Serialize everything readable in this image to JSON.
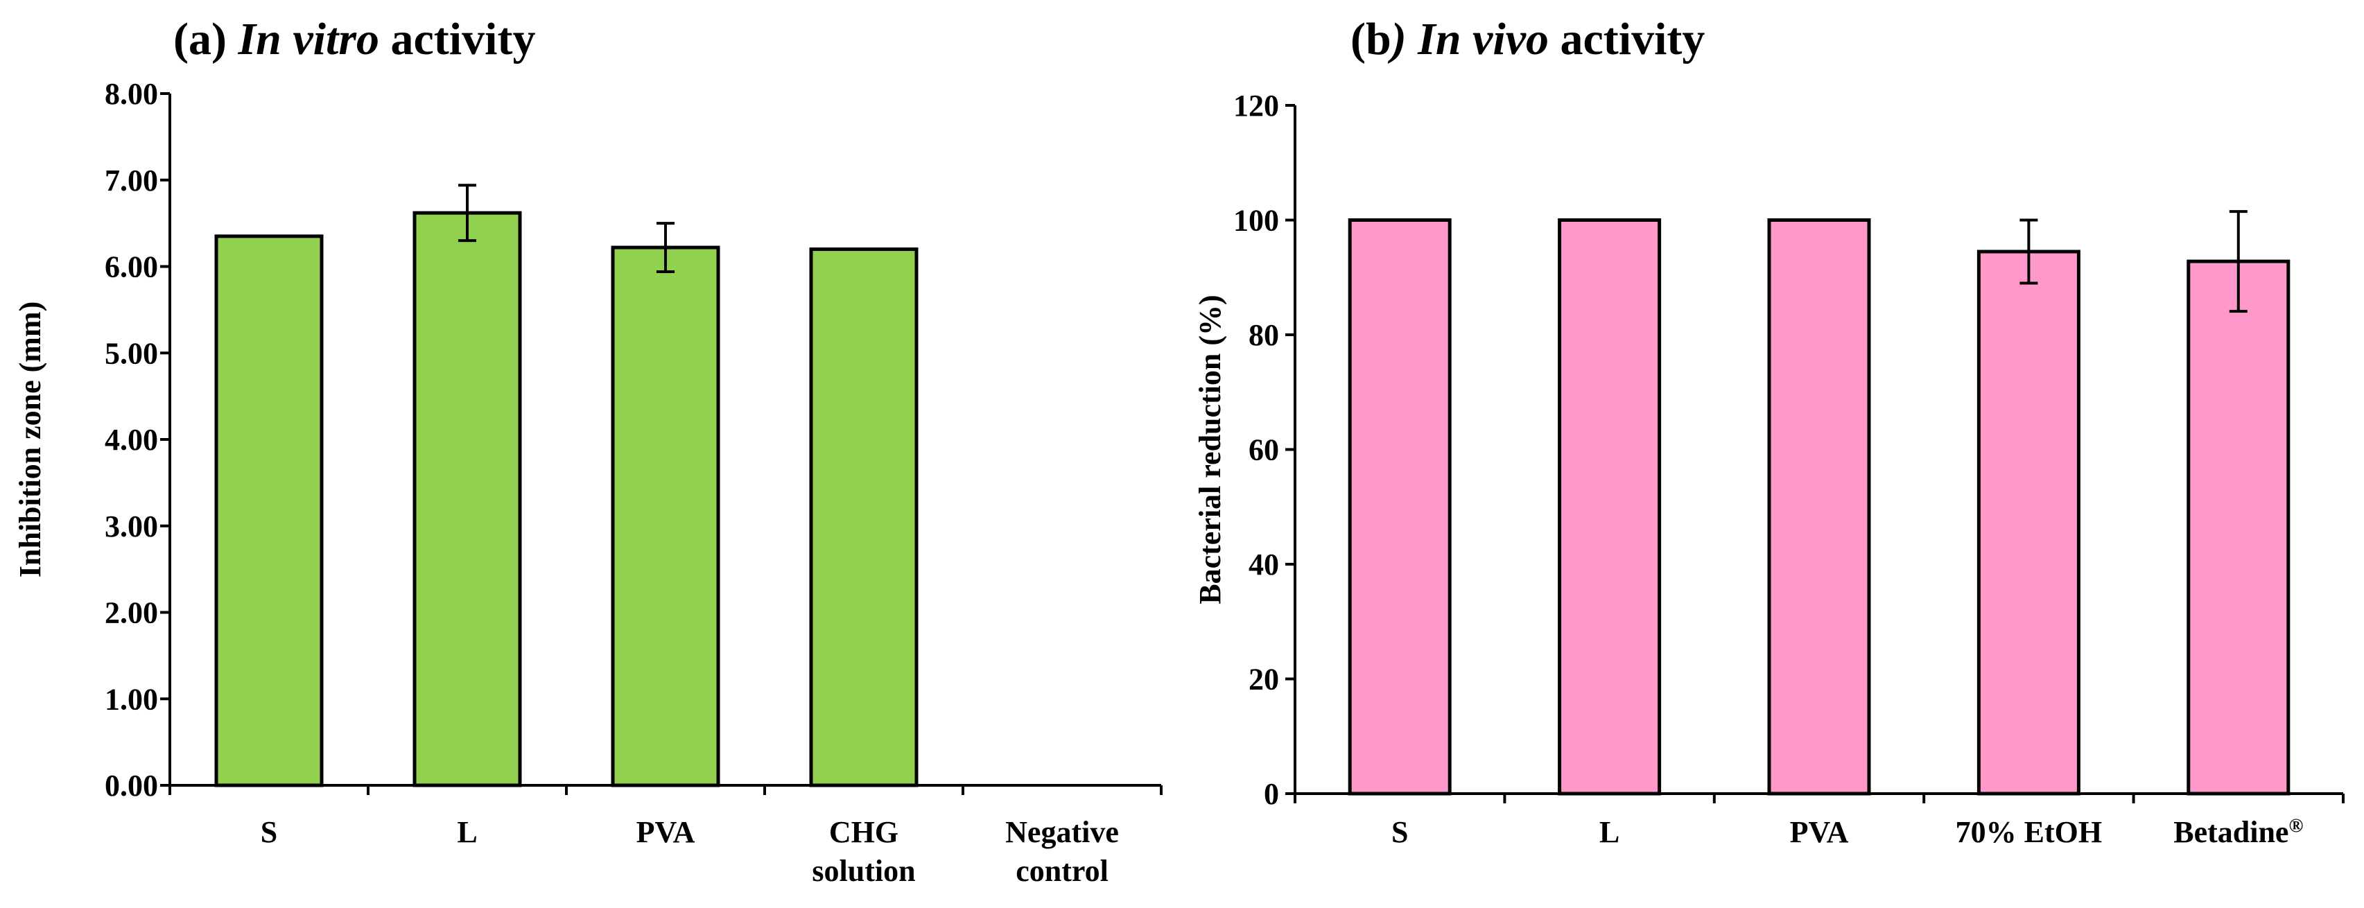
{
  "chart_data": [
    {
      "type": "bar",
      "title": {
        "prefix": "(a) ",
        "italic": "In vitro",
        "suffix": " activity"
      },
      "ylabel": "Inhibition zone (mm)",
      "ylim": [
        0,
        8
      ],
      "ytick_step": 1,
      "ytick_decimals": 2,
      "color": "#92D050",
      "categories": [
        {
          "lines": [
            "S"
          ]
        },
        {
          "lines": [
            "L"
          ]
        },
        {
          "lines": [
            "PVA"
          ]
        },
        {
          "lines": [
            "CHG",
            "solution"
          ]
        },
        {
          "lines": [
            "Negative",
            "control"
          ]
        }
      ],
      "values": [
        6.35,
        6.62,
        6.22,
        6.2,
        0
      ],
      "errors": [
        0,
        0.32,
        0.28,
        0,
        0
      ]
    },
    {
      "type": "bar",
      "title": {
        "prefix": "(b",
        "italic": ") In vivo",
        "suffix": " activity"
      },
      "ylabel": "Bacterial reduction (%)",
      "ylim": [
        0,
        120
      ],
      "ytick_step": 20,
      "ytick_decimals": 0,
      "color": "#FF99CC",
      "categories": [
        {
          "lines": [
            "S"
          ]
        },
        {
          "lines": [
            "L"
          ]
        },
        {
          "lines": [
            "PVA"
          ]
        },
        {
          "lines": [
            "70% EtOH"
          ]
        },
        {
          "lines": [
            "Betadine"
          ],
          "sup": "®"
        }
      ],
      "values": [
        100,
        100,
        100,
        94.5,
        92.8
      ],
      "errors": [
        0,
        0,
        0,
        5.5,
        8.7
      ]
    }
  ]
}
